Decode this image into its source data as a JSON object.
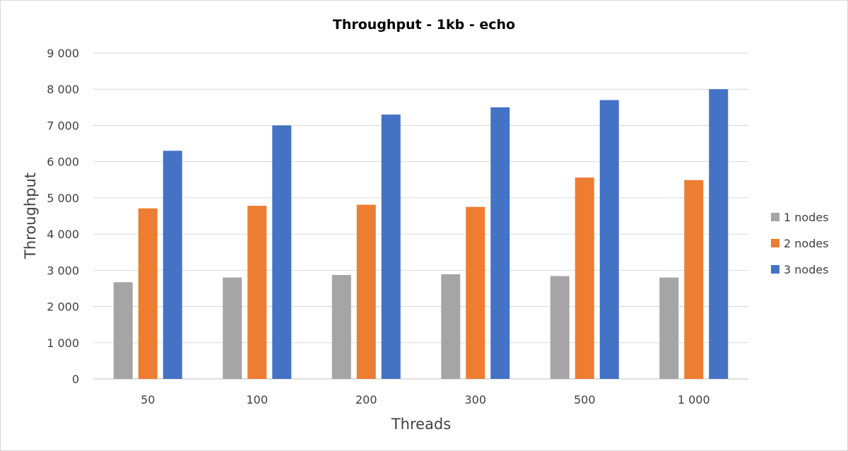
{
  "chart_data": {
    "type": "bar",
    "title": "Throughput - 1kb - echo",
    "xlabel": "Threads",
    "ylabel": "Throughput",
    "categories": [
      "50",
      "100",
      "200",
      "300",
      "500",
      "1 000"
    ],
    "series": [
      {
        "name": "1 nodes",
        "color": "#a5a5a5",
        "values": [
          2670,
          2800,
          2870,
          2890,
          2840,
          2800
        ]
      },
      {
        "name": "2 nodes",
        "color": "#ed7d31",
        "values": [
          4710,
          4780,
          4810,
          4750,
          5560,
          5490
        ]
      },
      {
        "name": "3 nodes",
        "color": "#4472c4",
        "values": [
          6300,
          7000,
          7300,
          7500,
          7700,
          8000
        ]
      }
    ],
    "ylim": [
      0,
      9000
    ],
    "yticks": [
      0,
      1000,
      2000,
      3000,
      4000,
      5000,
      6000,
      7000,
      8000,
      9000
    ],
    "ytick_labels": [
      "0",
      "1 000",
      "2 000",
      "3 000",
      "4 000",
      "5 000",
      "6 000",
      "7 000",
      "8 000",
      "9 000"
    ],
    "grid": true,
    "legend_position": "right"
  }
}
